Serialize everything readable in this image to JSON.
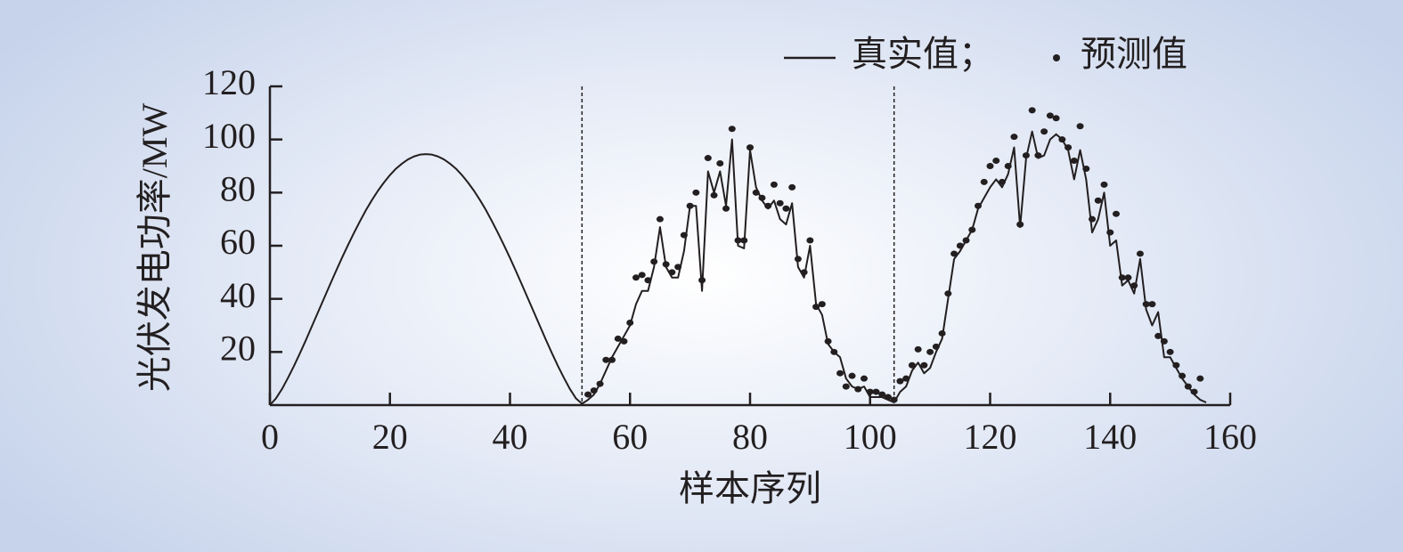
{
  "chart_data": {
    "type": "line-scatter",
    "x_label": "样本序列",
    "y_label": "光伏发电功率/MW",
    "x": [
      0,
      1,
      2,
      3,
      4,
      5,
      6,
      7,
      8,
      9,
      10,
      11,
      12,
      13,
      14,
      15,
      16,
      17,
      18,
      19,
      20,
      21,
      22,
      23,
      24,
      25,
      26,
      27,
      28,
      29,
      30,
      31,
      32,
      33,
      34,
      35,
      36,
      37,
      38,
      39,
      40,
      41,
      42,
      43,
      44,
      45,
      46,
      47,
      48,
      49,
      50,
      51,
      52,
      53,
      54,
      55,
      56,
      57,
      58,
      59,
      60,
      61,
      62,
      63,
      64,
      65,
      66,
      67,
      68,
      69,
      70,
      71,
      72,
      73,
      74,
      75,
      76,
      77,
      78,
      79,
      80,
      81,
      82,
      83,
      84,
      85,
      86,
      87,
      88,
      89,
      90,
      91,
      92,
      93,
      94,
      95,
      96,
      97,
      98,
      99,
      100,
      101,
      102,
      103,
      104,
      105,
      106,
      107,
      108,
      109,
      110,
      111,
      112,
      113,
      114,
      115,
      116,
      117,
      118,
      119,
      120,
      121,
      122,
      123,
      124,
      125,
      126,
      127,
      128,
      129,
      130,
      131,
      132,
      133,
      134,
      135,
      136,
      137,
      138,
      139,
      140,
      141,
      142,
      143,
      144,
      145,
      146,
      147,
      148,
      149,
      150,
      151,
      152,
      153,
      154,
      155,
      156
    ],
    "series": [
      {
        "name": "真实值；",
        "kind": "line",
        "color": "#231f20",
        "values": [
          0,
          2.5,
          6.0,
          10.2,
          14.7,
          19.5,
          24.5,
          29.7,
          34.9,
          40.1,
          45.3,
          50.4,
          55.4,
          60.2,
          64.8,
          69.2,
          73.4,
          77.2,
          80.7,
          83.8,
          86.6,
          89.0,
          90.9,
          92.5,
          93.6,
          94.3,
          94.5,
          94.3,
          93.6,
          92.5,
          90.9,
          89.0,
          86.6,
          83.8,
          80.7,
          77.2,
          73.4,
          69.2,
          64.8,
          60.2,
          55.4,
          50.4,
          45.3,
          40.1,
          34.9,
          29.7,
          24.5,
          19.5,
          14.7,
          10.2,
          6.0,
          2.5,
          0.5,
          2,
          4,
          8,
          13,
          18,
          22,
          26,
          30,
          38,
          43,
          43,
          52,
          67,
          52,
          48,
          48,
          58,
          75,
          75,
          43,
          88,
          80,
          88,
          75,
          100,
          60,
          59,
          96,
          82,
          77,
          74,
          77,
          70,
          68,
          76,
          52,
          48,
          60,
          38,
          34,
          23,
          20,
          18,
          10,
          7,
          6,
          7,
          3,
          3,
          3,
          2,
          1,
          5,
          7,
          13,
          16,
          12,
          14,
          20,
          25,
          40,
          55,
          58,
          62,
          66,
          74,
          78,
          82,
          85,
          82,
          87,
          97,
          67,
          93,
          103,
          93,
          94,
          100,
          102,
          100,
          96,
          85,
          96,
          85,
          65,
          70,
          80,
          60,
          62,
          45,
          47,
          42,
          55,
          36,
          30,
          35,
          18,
          18,
          14,
          10,
          7,
          4,
          2,
          1
        ]
      },
      {
        "name": "预测值",
        "kind": "dots",
        "color": "#231f20",
        "values": [
          null,
          null,
          null,
          null,
          null,
          null,
          null,
          null,
          null,
          null,
          null,
          null,
          null,
          null,
          null,
          null,
          null,
          null,
          null,
          null,
          null,
          null,
          null,
          null,
          null,
          null,
          null,
          null,
          null,
          null,
          null,
          null,
          null,
          null,
          null,
          null,
          null,
          null,
          null,
          null,
          null,
          null,
          null,
          null,
          null,
          null,
          null,
          null,
          null,
          null,
          null,
          null,
          null,
          4,
          5.5,
          8,
          17,
          17,
          25,
          24,
          31,
          48,
          49,
          47,
          54,
          70,
          53,
          50,
          52,
          64,
          75,
          80,
          47,
          93,
          79,
          91,
          74,
          104,
          62,
          62,
          97,
          80,
          78,
          75,
          83,
          76,
          74,
          82,
          55,
          50,
          62,
          37,
          38,
          24,
          20,
          12,
          7,
          11,
          6,
          10,
          5,
          5,
          4,
          3,
          2,
          9,
          10,
          15,
          21,
          15,
          20,
          22,
          27,
          42,
          57,
          60,
          62,
          66,
          75,
          84,
          90,
          92,
          84,
          90,
          101,
          68,
          94,
          111,
          94,
          103,
          109,
          108,
          100,
          97,
          92,
          105,
          89,
          70,
          77,
          83,
          65,
          72,
          48,
          48,
          45,
          57,
          38,
          38,
          26,
          24,
          20,
          15,
          11,
          7,
          5,
          10,
          null
        ]
      }
    ],
    "dividers": [
      52,
      104
    ],
    "xlim": [
      0,
      160
    ],
    "xticks": [
      0,
      20,
      40,
      60,
      80,
      100,
      120,
      140,
      160
    ],
    "ylim": [
      0,
      120
    ],
    "yticks": [
      20,
      40,
      60,
      80,
      100,
      120
    ]
  }
}
